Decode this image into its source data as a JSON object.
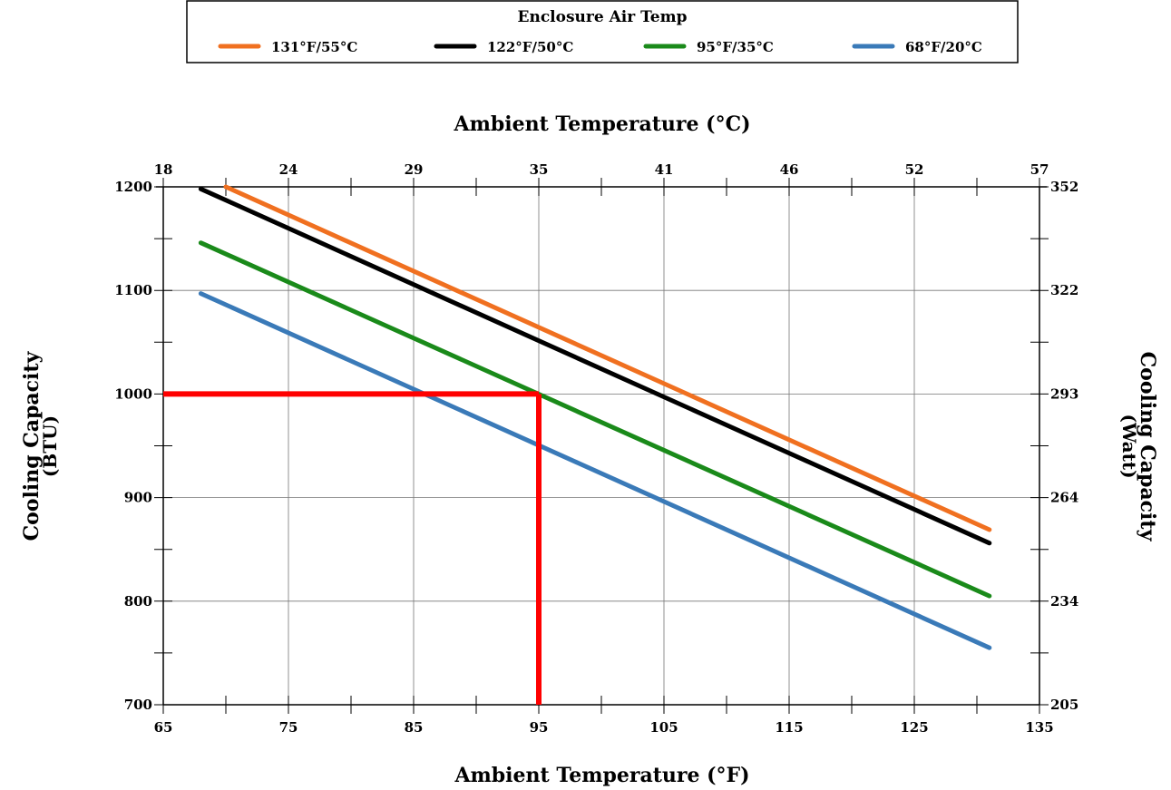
{
  "chart_data": {
    "type": "line",
    "legend": {
      "title": "Enclosure Air Temp",
      "placement": "top"
    },
    "x_bottom": {
      "label": "Ambient Temperature (°F)",
      "range": [
        65,
        135
      ],
      "ticks": [
        "65",
        "75",
        "85",
        "95",
        "105",
        "115",
        "125",
        "135"
      ]
    },
    "x_top": {
      "label": "Ambient Temperature (°C)",
      "ticks": [
        "18",
        "24",
        "29",
        "35",
        "41",
        "46",
        "52",
        "57"
      ]
    },
    "y_left": {
      "label_line1": "Cooling Capacity",
      "label_line2": "(BTU)",
      "range": [
        700,
        1200
      ],
      "ticks": [
        "700",
        "800",
        "900",
        "1000",
        "1100",
        "1200"
      ]
    },
    "y_right": {
      "label_line1": "Cooling Capacity",
      "label_line2": "(Watt)",
      "ticks": [
        "205",
        "234",
        "264",
        "293",
        "322",
        "352"
      ]
    },
    "grid": true,
    "series": [
      {
        "name": "131°F/55°C",
        "color": "#f07020",
        "x": [
          70,
          131
        ],
        "y": [
          1200,
          869
        ]
      },
      {
        "name": "122°F/50°C",
        "color": "#000000",
        "x": [
          68,
          131
        ],
        "y": [
          1198,
          856
        ]
      },
      {
        "name": "95°F/35°C",
        "color": "#1a8a1a",
        "x": [
          68,
          131
        ],
        "y": [
          1146,
          805
        ]
      },
      {
        "name": "68°F/20°C",
        "color": "#3a7ab8",
        "x": [
          68,
          131
        ],
        "y": [
          1097,
          755
        ]
      }
    ],
    "reference": {
      "color": "#ff0000",
      "x": 95,
      "y": 1000
    }
  }
}
